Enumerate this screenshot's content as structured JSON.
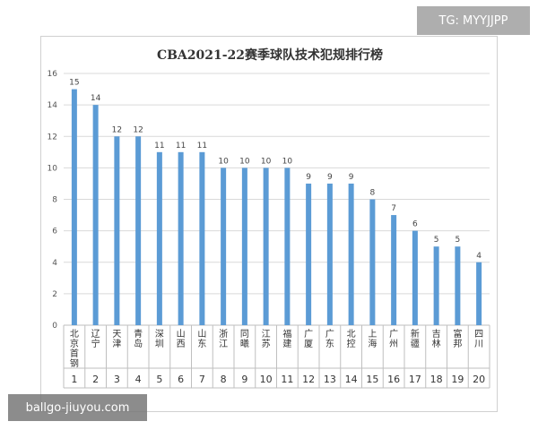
{
  "watermarks": {
    "top_right": "TG: MYYJJPP",
    "bottom_left": "ballgo-jiuyou.com"
  },
  "chart_data": {
    "type": "bar",
    "title": "CBA2021-22赛季球队技术犯规排行榜",
    "categories": [
      "北京首钢",
      "辽宁",
      "天津",
      "青岛",
      "深圳",
      "山西",
      "山东",
      "浙江",
      "同曦",
      "江苏",
      "福建",
      "广厦",
      "广东",
      "北控",
      "上海",
      "广州",
      "新疆",
      "吉林",
      "富邦",
      "四川"
    ],
    "ranks": [
      "1",
      "2",
      "3",
      "4",
      "5",
      "6",
      "7",
      "8",
      "9",
      "10",
      "11",
      "12",
      "13",
      "14",
      "15",
      "16",
      "17",
      "18",
      "19",
      "20"
    ],
    "values": [
      15,
      14,
      12,
      12,
      11,
      11,
      11,
      10,
      10,
      10,
      10,
      9,
      9,
      9,
      8,
      7,
      6,
      5,
      5,
      4
    ],
    "ylim": [
      0,
      16
    ],
    "yticks": [
      0,
      2,
      4,
      6,
      8,
      10,
      12,
      14,
      16
    ],
    "xlabel": "",
    "ylabel": "",
    "grid": true,
    "colors": {
      "bar": "#5b9bd5",
      "grid": "#d9d9d9",
      "axis": "#bfbfbf"
    }
  }
}
